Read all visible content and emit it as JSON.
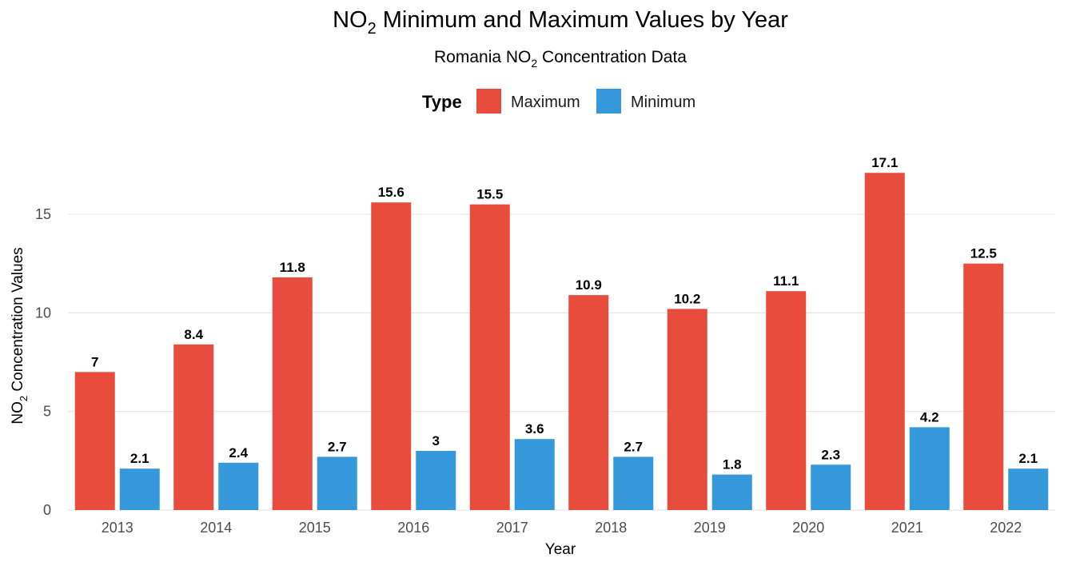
{
  "chart_data": {
    "type": "bar",
    "title": {
      "pre": "NO",
      "sub": "2",
      "post": " Minimum and Maximum Values by Year"
    },
    "subtitle": {
      "pre": "Romania NO",
      "sub": "2",
      "post": " Concentration Data"
    },
    "xlabel": "Year",
    "ylabel": {
      "pre": "NO",
      "sub": "2",
      "post": " Concentration Values"
    },
    "legend_title": "Type",
    "legend_position": "top",
    "categories": [
      "2013",
      "2014",
      "2015",
      "2016",
      "2017",
      "2018",
      "2019",
      "2020",
      "2021",
      "2022"
    ],
    "series": [
      {
        "name": "Maximum",
        "color": "#E74C3C",
        "values": [
          7,
          8.4,
          11.8,
          15.6,
          15.5,
          10.9,
          10.2,
          11.1,
          17.1,
          12.5
        ]
      },
      {
        "name": "Minimum",
        "color": "#3498DB",
        "values": [
          2.1,
          2.4,
          2.7,
          3,
          3.6,
          2.7,
          1.8,
          2.3,
          4.2,
          2.1
        ]
      }
    ],
    "yticks": [
      0,
      5,
      10,
      15
    ],
    "ylim": [
      0,
      17.96
    ],
    "grid": true
  }
}
